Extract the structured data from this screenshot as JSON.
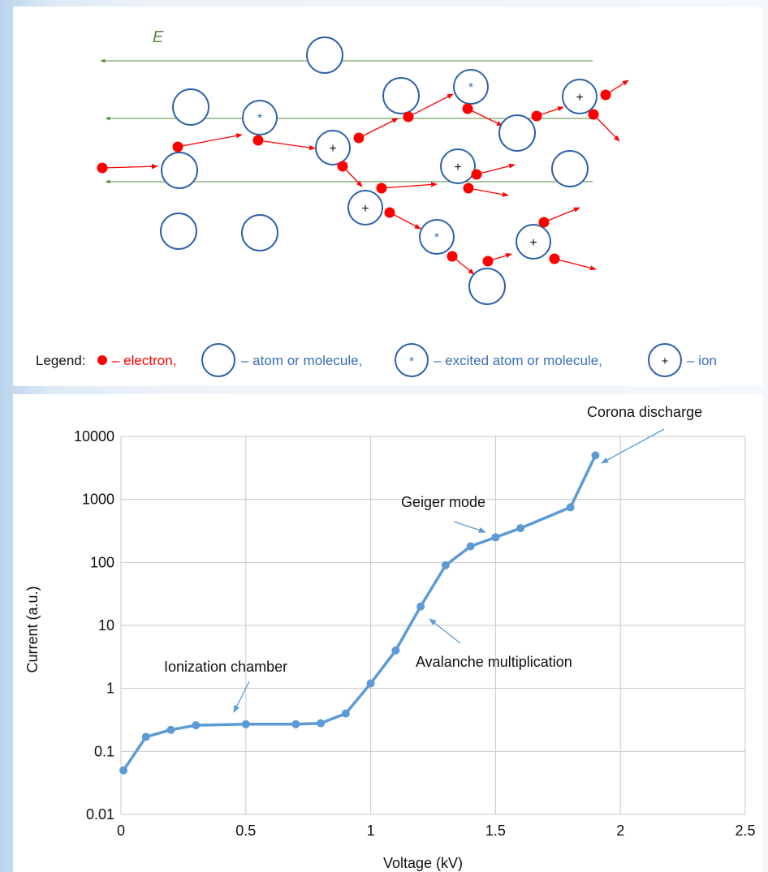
{
  "diagram": {
    "field_label": "E",
    "legend": {
      "prefix": "Legend:",
      "electron": "– electron,",
      "atom": "– atom or molecule,",
      "excited": "– excited atom or molecule,",
      "ion": "– ion",
      "excited_symbol": "*",
      "ion_symbol": "+"
    },
    "colors": {
      "electron": "#ff0000",
      "atom_outline": "#2d62a8",
      "field": "#5a8a3c",
      "legend_blue": "#3a6fb5"
    }
  },
  "chart_data": {
    "type": "line",
    "xlabel": "Voltage (kV)",
    "ylabel": "Current (a.u.)",
    "xlim": [
      0,
      2.5
    ],
    "ylim": [
      0.01,
      10000
    ],
    "yscale": "log",
    "grid": true,
    "xticks": [
      "0",
      "0.5",
      "1",
      "1.5",
      "2",
      "2.5"
    ],
    "yticks": [
      "0.01",
      "0.1",
      "1",
      "10",
      "100",
      "1000",
      "10000"
    ],
    "line_color": "#5b9bd5",
    "series": [
      {
        "x": [
          0.01,
          0.1,
          0.2,
          0.3,
          0.5,
          0.7,
          0.8,
          0.9,
          1.0,
          1.1,
          1.2,
          1.3,
          1.4,
          1.5,
          1.6,
          1.8,
          1.9
        ],
        "y": [
          0.05,
          0.17,
          0.22,
          0.26,
          0.27,
          0.27,
          0.28,
          0.4,
          1.2,
          4,
          20,
          90,
          180,
          250,
          350,
          750,
          5000
        ]
      }
    ],
    "annotations": [
      {
        "text": "Ionization chamber"
      },
      {
        "text": "Avalanche multiplication"
      },
      {
        "text": "Geiger mode"
      },
      {
        "text": "Corona discharge"
      }
    ]
  }
}
